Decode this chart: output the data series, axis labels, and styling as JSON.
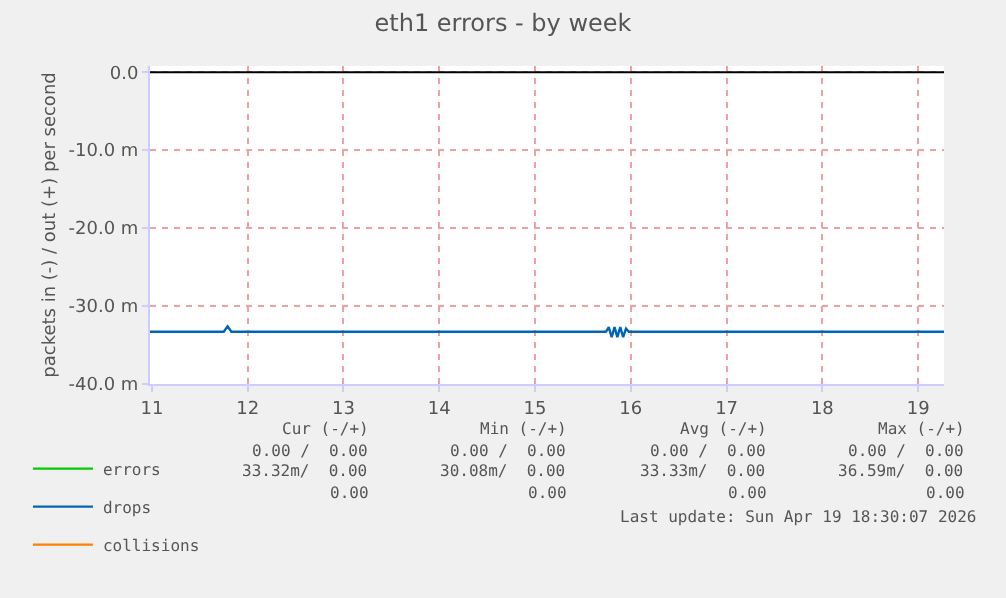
{
  "chart_data": {
    "type": "line",
    "title": "eth1 errors - by week",
    "ylabel": "packets in (-) / out (+) per second",
    "x": [
      10.98,
      11.75,
      11.79,
      11.83,
      15.74,
      15.77,
      15.8,
      15.83,
      15.86,
      15.89,
      15.92,
      15.95,
      15.98,
      19.27
    ],
    "series": [
      {
        "name": "errors",
        "color": "#00cc00",
        "values": [
          null,
          null,
          null,
          null,
          null,
          null,
          null,
          null,
          null,
          null,
          null,
          null,
          null,
          null
        ]
      },
      {
        "name": "drops",
        "color": "#0066b3",
        "values": [
          -33.3,
          -33.3,
          -32.6,
          -33.3,
          -33.3,
          -32.7,
          -34.0,
          -32.7,
          -34.0,
          -32.7,
          -34.0,
          -32.9,
          -33.3,
          -33.3
        ]
      },
      {
        "name": "collisions",
        "color": "#ff8000",
        "values": [
          null,
          null,
          null,
          null,
          null,
          null,
          null,
          null,
          null,
          null,
          null,
          null,
          null,
          null
        ]
      }
    ],
    "ref_lines": [
      {
        "axis": "y",
        "value": 0,
        "color": "#000000"
      }
    ],
    "xlim": [
      10.98,
      19.27
    ],
    "xticks": [
      11,
      12,
      13,
      14,
      15,
      16,
      17,
      18,
      19
    ],
    "ylim": [
      -40,
      0.8
    ],
    "yticks": [
      {
        "value": 0,
        "label": "0.0"
      },
      {
        "value": -10,
        "label": "-10.0 m"
      },
      {
        "value": -20,
        "label": "-20.0 m"
      },
      {
        "value": -30,
        "label": "-30.0 m"
      },
      {
        "value": -40,
        "label": "-40.0 m"
      }
    ],
    "grid": true,
    "legend": "bottom left",
    "marker": "none",
    "line_style": "solid",
    "annotations": [
      "Cur (-/+)",
      "Min (-/+)",
      "Avg (-/+)",
      "Max (-/+)",
      "0.00 /  0.00",
      "0.00 /  0.00",
      "0.00 /  0.00",
      "0.00 /  0.00",
      "33.32m/  0.00",
      "30.08m/  0.00",
      "33.33m/  0.00",
      "36.59m/  0.00",
      "0.00",
      "0.00",
      "0.00",
      "0.00",
      "Last update: Sun Apr 19 18:30:07 2026"
    ]
  }
}
